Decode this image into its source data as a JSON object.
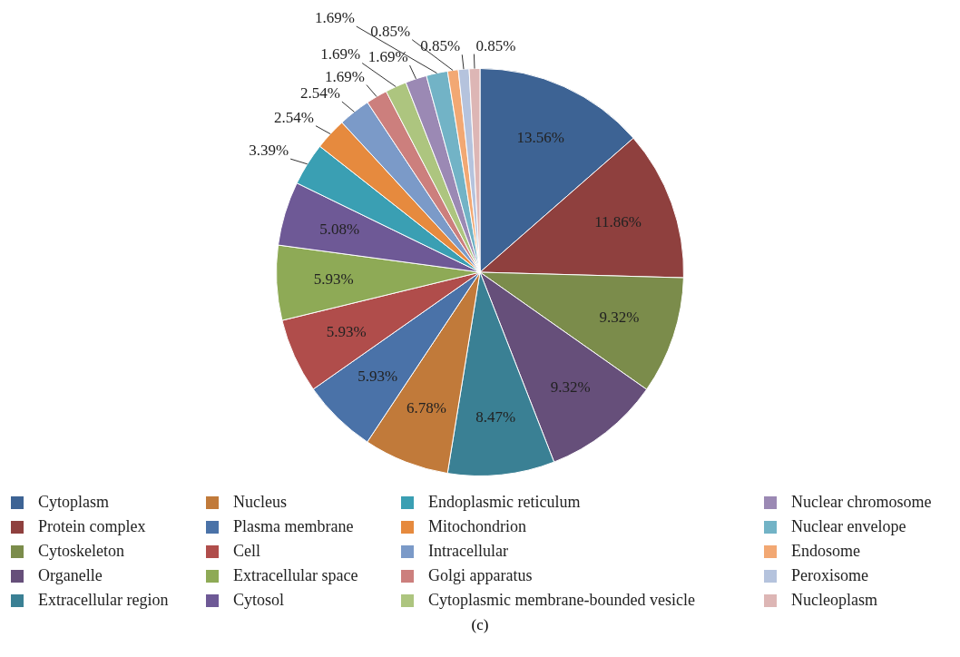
{
  "chart_data": {
    "type": "pie",
    "categories": [
      "Cytoplasm",
      "Protein complex",
      "Cytoskeleton",
      "Organelle",
      "Extracellular region",
      "Nucleus",
      "Plasma membrane",
      "Cell",
      "Extracellular space",
      "Cytosol",
      "Endoplasmic reticulum",
      "Mitochondrion",
      "Intracellular",
      "Golgi apparatus",
      "Cytoplasmic membrane-bounded vesicle",
      "Nuclear chromosome",
      "Nuclear envelope",
      "Endosome",
      "Peroxisome",
      "Nucleoplasm"
    ],
    "values": [
      13.56,
      11.86,
      9.32,
      9.32,
      8.47,
      6.78,
      5.93,
      5.93,
      5.93,
      5.08,
      3.39,
      2.54,
      2.54,
      1.69,
      1.69,
      1.69,
      1.69,
      0.85,
      0.85,
      0.85
    ],
    "colors": [
      "#3d6394",
      "#8f403e",
      "#7b8c4b",
      "#664f7a",
      "#3a8094",
      "#c17a3a",
      "#4a72a8",
      "#b04d4b",
      "#8eaa56",
      "#6e5996",
      "#3a9fb3",
      "#e68a3e",
      "#7b9ac8",
      "#cc7f7d",
      "#adc57f",
      "#9b89b4",
      "#72b3c6",
      "#f2a873",
      "#b5c3dd",
      "#ddb6b5"
    ],
    "value_labels": [
      "13.56%",
      "11.86%",
      "9.32%",
      "9.32%",
      "8.47%",
      "6.78%",
      "5.93%",
      "5.93%",
      "5.93%",
      "5.08%",
      "3.39%",
      "2.54%",
      "2.54%",
      "1.69%",
      "1.69%",
      "1.69%",
      "1.69%",
      "0.85%",
      "0.85%",
      "0.85%"
    ],
    "legend": "bottom",
    "annotations": [
      "(c)"
    ]
  }
}
